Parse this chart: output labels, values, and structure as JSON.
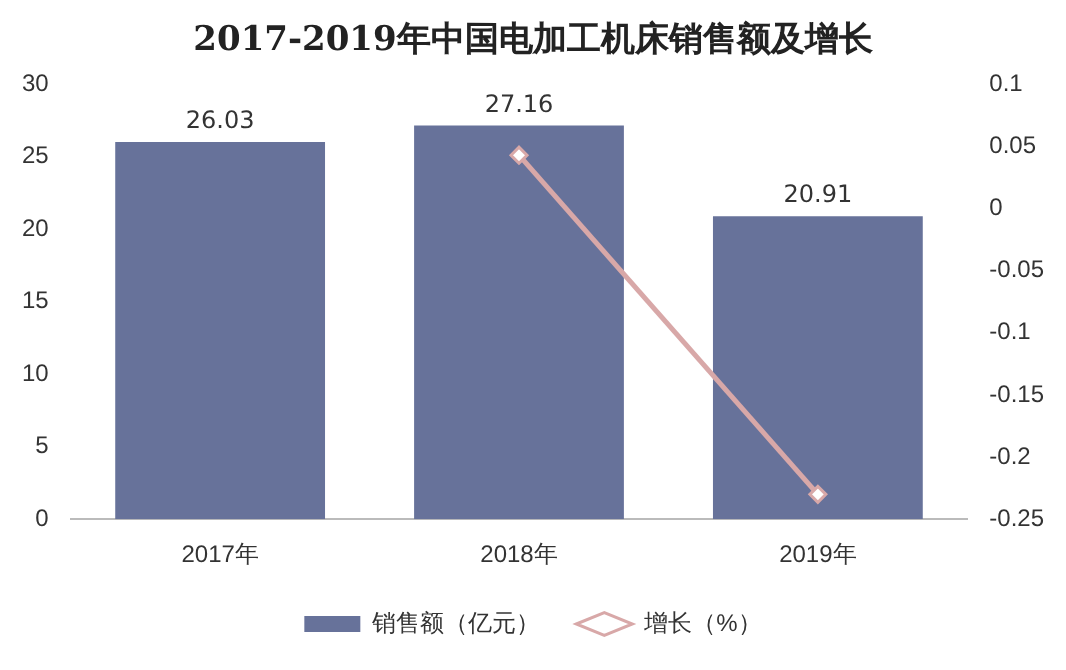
{
  "chart_data": {
    "type": "bar",
    "title": "2017-2019年中国电加工机床销售额及增长",
    "categories": [
      "2017年",
      "2018年",
      "2019年"
    ],
    "series": [
      {
        "name": "销售额（亿元）",
        "color": "#67729a",
        "values": [
          26.03,
          27.16,
          20.91
        ],
        "value_labels": [
          "26.03",
          "27.16",
          "20.91"
        ]
      },
      {
        "name": "增长（%）",
        "type": "line",
        "axis": "y2",
        "color": "#d8a8a8",
        "marker": "diamond",
        "values": [
          null,
          0.043,
          -0.23
        ]
      }
    ],
    "ylim": [
      0,
      30
    ],
    "yticks": [
      0,
      5,
      10,
      15,
      20,
      25,
      30
    ],
    "y2lim": [
      -0.25,
      0.1
    ],
    "y2ticks": [
      -0.25,
      -0.2,
      -0.15,
      -0.1,
      -0.05,
      0,
      0.05,
      0.1
    ],
    "grid": false,
    "legend": "bottom"
  }
}
